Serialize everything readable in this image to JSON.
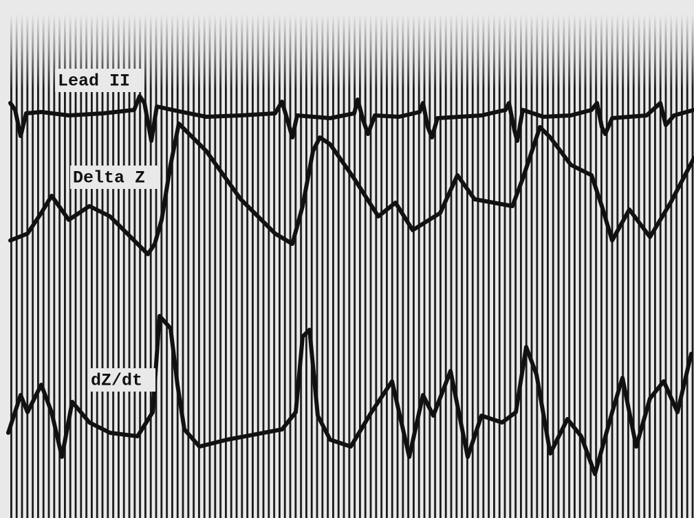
{
  "traces": [
    {
      "label": "Lead II"
    },
    {
      "label": "Delta Z"
    },
    {
      "label": "dZ/dt"
    }
  ]
}
